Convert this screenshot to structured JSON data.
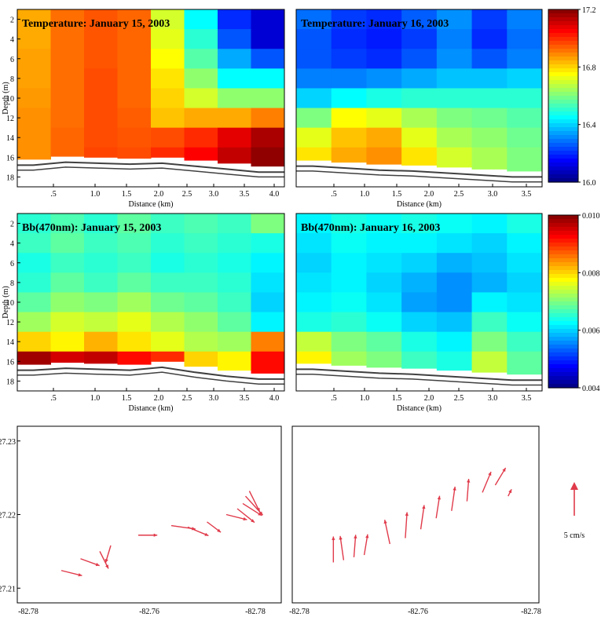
{
  "chart_data": [
    {
      "type": "heatmap",
      "panel": "temp-jan15",
      "title": "Temperature: January 15, 2003",
      "xlabel": "Distance (km)",
      "ylabel": "Depth (m)",
      "x_ticks": [
        ".5",
        "1.0",
        "1.5",
        "2.0",
        "2.5",
        "3.0",
        "3.5",
        "4.0"
      ],
      "y_ticks": [
        "2",
        "4",
        "6",
        "8",
        "10",
        "12",
        "14",
        "16",
        "18"
      ],
      "xlim": [
        0,
        4.15
      ],
      "ylim": [
        1,
        19
      ],
      "columns_x_km": [
        0.25,
        0.75,
        1.25,
        1.75,
        2.25,
        2.75,
        3.25,
        3.75
      ],
      "rows_depth_m": [
        2,
        4,
        6,
        8,
        10,
        12,
        14,
        16
      ],
      "values": [
        [
          16.85,
          16.92,
          16.95,
          16.93,
          16.7,
          16.45,
          16.2,
          16.1
        ],
        [
          16.85,
          16.92,
          16.95,
          16.93,
          16.72,
          16.5,
          16.25,
          16.1
        ],
        [
          16.86,
          16.92,
          16.95,
          16.93,
          16.75,
          16.55,
          16.35,
          16.25
        ],
        [
          16.86,
          16.92,
          16.96,
          16.93,
          16.78,
          16.62,
          16.45,
          16.45
        ],
        [
          16.87,
          16.92,
          16.96,
          16.93,
          16.8,
          16.7,
          16.62,
          16.62
        ],
        [
          16.88,
          16.92,
          16.96,
          16.94,
          16.82,
          16.85,
          16.85,
          16.9
        ],
        [
          16.88,
          16.93,
          16.96,
          16.95,
          16.96,
          17.0,
          17.08,
          17.15
        ],
        [
          16.88,
          16.93,
          16.97,
          16.96,
          17.0,
          17.05,
          17.12,
          17.18
        ]
      ],
      "bottom_depth_m": [
        16.8,
        16.5,
        16.6,
        16.7,
        16.6,
        16.9,
        17.2,
        17.5
      ]
    },
    {
      "type": "heatmap",
      "panel": "temp-jan16",
      "title": "Temperature: January 16, 2003",
      "xlabel": "Distance (km)",
      "ylabel": "",
      "x_ticks": [
        ".5",
        "1.0",
        "1.5",
        "2.0",
        "2.5",
        "3.0",
        "3.5"
      ],
      "xlim": [
        0,
        3.7
      ],
      "ylim": [
        1,
        19
      ],
      "columns_x_km": [
        0.25,
        0.75,
        1.25,
        1.75,
        2.25,
        2.75,
        3.25
      ],
      "rows_depth_m": [
        2,
        4,
        6,
        8,
        10,
        12,
        14,
        16
      ],
      "values": [
        [
          16.28,
          16.22,
          16.2,
          16.26,
          16.32,
          16.22,
          16.3
        ],
        [
          16.25,
          16.2,
          16.18,
          16.22,
          16.3,
          16.2,
          16.28
        ],
        [
          16.25,
          16.22,
          16.2,
          16.25,
          16.32,
          16.25,
          16.3
        ],
        [
          16.3,
          16.3,
          16.32,
          16.35,
          16.38,
          16.38,
          16.4
        ],
        [
          16.4,
          16.45,
          16.48,
          16.5,
          16.5,
          16.5,
          16.5
        ],
        [
          16.6,
          16.75,
          16.72,
          16.65,
          16.6,
          16.58,
          16.55
        ],
        [
          16.72,
          16.82,
          16.85,
          16.72,
          16.65,
          16.62,
          16.58
        ],
        [
          16.78,
          16.85,
          16.88,
          16.78,
          16.7,
          16.65,
          16.6
        ]
      ],
      "bottom_depth_m": [
        16.9,
        17.1,
        17.3,
        17.4,
        17.6,
        17.8,
        18.0
      ]
    },
    {
      "type": "heatmap",
      "panel": "bb-jan15",
      "title": "Bb(470nm): January 15, 2003",
      "xlabel": "Distance (km)",
      "ylabel": "Depth (m)",
      "x_ticks": [
        ".5",
        "1.0",
        "1.5",
        "2.0",
        "2.5",
        "3.0",
        "3.5",
        "4.0"
      ],
      "y_ticks": [
        "2",
        "4",
        "6",
        "8",
        "10",
        "12",
        "14",
        "16",
        "18"
      ],
      "xlim": [
        0,
        4.15
      ],
      "ylim": [
        1,
        19
      ],
      "columns_x_km": [
        0.25,
        0.75,
        1.25,
        1.75,
        2.25,
        2.75,
        3.25,
        3.75
      ],
      "rows_depth_m": [
        2,
        4,
        6,
        8,
        10,
        12,
        14,
        16
      ],
      "values": [
        [
          0.0065,
          0.0067,
          0.0065,
          0.0068,
          0.0066,
          0.0067,
          0.0066,
          0.007
        ],
        [
          0.0066,
          0.0068,
          0.0066,
          0.0067,
          0.0065,
          0.0066,
          0.0065,
          0.0064
        ],
        [
          0.0064,
          0.0066,
          0.0065,
          0.0066,
          0.0064,
          0.0065,
          0.0064,
          0.0062
        ],
        [
          0.0065,
          0.0068,
          0.0066,
          0.0068,
          0.0066,
          0.0066,
          0.0065,
          0.0061
        ],
        [
          0.0068,
          0.0071,
          0.007,
          0.0072,
          0.0069,
          0.0068,
          0.0066,
          0.006
        ],
        [
          0.0072,
          0.0075,
          0.0074,
          0.0076,
          0.0073,
          0.0071,
          0.0068,
          0.0062
        ],
        [
          0.008,
          0.0078,
          0.0082,
          0.0079,
          0.0076,
          0.0073,
          0.0072,
          0.0085
        ],
        [
          0.0098,
          0.0095,
          0.0096,
          0.0092,
          0.009,
          0.008,
          0.0078,
          0.0092
        ]
      ],
      "bottom_depth_m": [
        16.9,
        16.7,
        16.8,
        16.9,
        16.6,
        17.1,
        17.5,
        17.8
      ]
    },
    {
      "type": "heatmap",
      "panel": "bb-jan16",
      "title": "Bb(470nm): January 16, 2003",
      "xlabel": "Distance (km)",
      "ylabel": "",
      "x_ticks": [
        ".5",
        "1.0",
        "1.5",
        "2.0",
        "2.5",
        "3.0",
        "3.5"
      ],
      "xlim": [
        0,
        3.7
      ],
      "ylim": [
        1,
        19
      ],
      "columns_x_km": [
        0.25,
        0.75,
        1.25,
        1.75,
        2.25,
        2.75,
        3.25
      ],
      "rows_depth_m": [
        2,
        4,
        6,
        8,
        10,
        12,
        14,
        16
      ],
      "values": [
        [
          0.0062,
          0.0064,
          0.0063,
          0.0064,
          0.0063,
          0.0062,
          0.0064
        ],
        [
          0.0061,
          0.0063,
          0.0062,
          0.0062,
          0.0061,
          0.006,
          0.0062
        ],
        [
          0.006,
          0.0062,
          0.0061,
          0.006,
          0.0058,
          0.0059,
          0.0061
        ],
        [
          0.0061,
          0.0062,
          0.006,
          0.0058,
          0.0056,
          0.0058,
          0.006
        ],
        [
          0.0062,
          0.0063,
          0.0061,
          0.0057,
          0.0056,
          0.0062,
          0.0061
        ],
        [
          0.0064,
          0.0065,
          0.0063,
          0.006,
          0.0059,
          0.0066,
          0.0063
        ],
        [
          0.0074,
          0.007,
          0.0068,
          0.0064,
          0.0062,
          0.007,
          0.0066
        ],
        [
          0.0078,
          0.0072,
          0.007,
          0.0066,
          0.0064,
          0.0074,
          0.0068
        ]
      ],
      "bottom_depth_m": [
        16.8,
        17.0,
        17.2,
        17.3,
        17.5,
        17.7,
        17.9
      ]
    },
    {
      "type": "quiver",
      "panel": "currents-jan15",
      "xlabel": "",
      "ylabel": "",
      "x_ticks": [
        "-82.78",
        "-82.76",
        "-82.78"
      ],
      "y_ticks": [
        "27.23",
        "27.22",
        "27.21"
      ],
      "xlim": [
        -82.784,
        -82.736
      ],
      "ylim": [
        27.208,
        27.232
      ],
      "vectors_lon_lat_u_v_cms": [
        [
          -82.776,
          27.2124,
          1.2,
          -0.3
        ],
        [
          -82.7725,
          27.214,
          1.1,
          -0.4
        ],
        [
          -82.769,
          27.215,
          0.5,
          -1.0
        ],
        [
          -82.767,
          27.2158,
          -0.3,
          -1.0
        ],
        [
          -82.762,
          27.2172,
          1.1,
          0.0
        ],
        [
          -82.756,
          27.2185,
          1.4,
          -0.2
        ],
        [
          -82.753,
          27.2183,
          1.2,
          -0.5
        ],
        [
          -82.7495,
          27.219,
          0.8,
          -0.6
        ],
        [
          -82.746,
          27.22,
          1.2,
          -0.3
        ],
        [
          -82.744,
          27.2208,
          1.0,
          -0.8
        ],
        [
          -82.743,
          27.2215,
          1.1,
          -0.7
        ],
        [
          -82.7425,
          27.2225,
          1.0,
          -1.1
        ],
        [
          -82.7418,
          27.2232,
          0.6,
          -1.2
        ]
      ],
      "scale_label": "5 cm/s"
    },
    {
      "type": "quiver",
      "panel": "currents-jan16",
      "xlabel": "",
      "ylabel": "",
      "x_ticks": [
        "-82.78",
        "-82.76",
        "-82.78"
      ],
      "xlim": [
        -82.784,
        -82.736
      ],
      "ylim": [
        27.208,
        27.232
      ],
      "vectors_lon_lat_u_v_cms": [
        [
          -82.776,
          27.2135,
          0.0,
          1.5
        ],
        [
          -82.774,
          27.2138,
          -0.2,
          1.4
        ],
        [
          -82.772,
          27.2142,
          0.1,
          1.3
        ],
        [
          -82.77,
          27.2145,
          0.2,
          1.2
        ],
        [
          -82.765,
          27.216,
          -0.3,
          1.4
        ],
        [
          -82.762,
          27.2168,
          0.1,
          1.5
        ],
        [
          -82.759,
          27.218,
          0.2,
          1.4
        ],
        [
          -82.756,
          27.2195,
          0.2,
          1.3
        ],
        [
          -82.753,
          27.2205,
          0.2,
          1.4
        ],
        [
          -82.75,
          27.2218,
          0.1,
          1.3
        ],
        [
          -82.747,
          27.223,
          0.5,
          1.2
        ],
        [
          -82.7445,
          27.224,
          0.6,
          1.0
        ],
        [
          -82.742,
          27.2225,
          0.2,
          0.4
        ]
      ],
      "scale_label": "5 cm/s"
    }
  ],
  "colorbars": [
    {
      "name": "temperature",
      "ticks": [
        "17.2",
        "16.8",
        "16.4",
        "16.0"
      ],
      "range": [
        16.0,
        17.2
      ]
    },
    {
      "name": "bb470",
      "ticks": [
        "0.010",
        "0.008",
        "0.006",
        "0.004"
      ],
      "range": [
        0.004,
        0.01
      ]
    }
  ],
  "colors": {
    "vector": "#e03a4a",
    "bottom_line": "#404040",
    "jet": [
      "#00007f",
      "#0000ff",
      "#007fff",
      "#00ffff",
      "#7fff7f",
      "#ffff00",
      "#ff7f00",
      "#ff0000",
      "#7f0000"
    ]
  }
}
